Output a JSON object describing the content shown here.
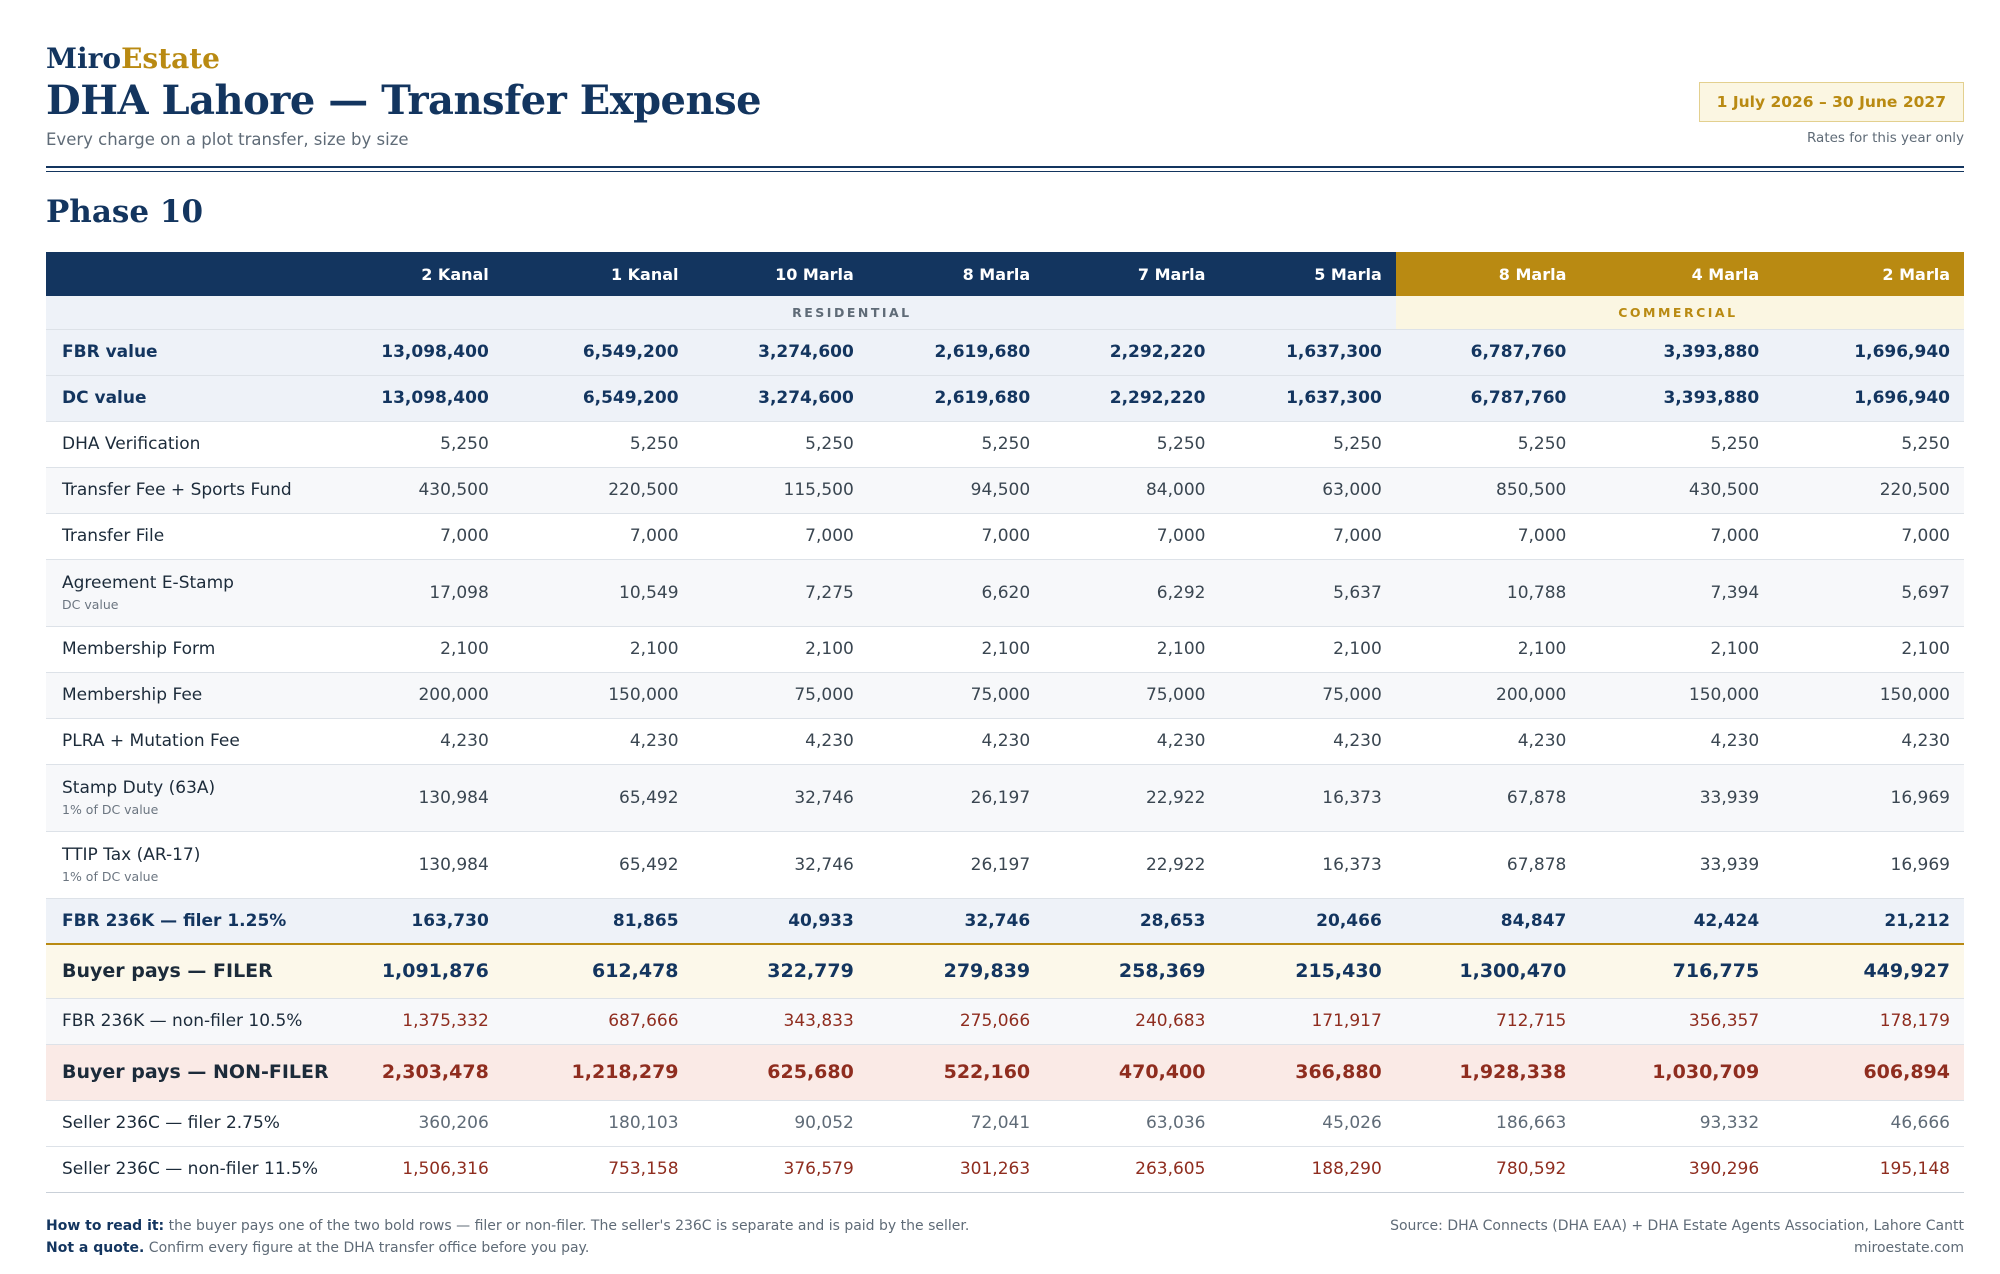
{
  "brand": {
    "part1": "Miro",
    "part2": "Estate"
  },
  "title": "DHA Lahore — Transfer Expense",
  "subtitle": "Every charge on a plot transfer, size by size",
  "date_range": "1 July 2026 – 30 June 2027",
  "rates_note": "Rates for this year only",
  "phase": "Phase 10",
  "columns": [
    "2 Kanal",
    "1 Kanal",
    "10 Marla",
    "8 Marla",
    "7 Marla",
    "5 Marla",
    "8 Marla",
    "4 Marla",
    "2 Marla"
  ],
  "categories": {
    "residential": "RESIDENTIAL",
    "commercial": "COMMERCIAL"
  },
  "rows": [
    {
      "label": "FBR value",
      "values": [
        "13,098,400",
        "6,549,200",
        "3,274,600",
        "2,619,680",
        "2,292,220",
        "1,637,300",
        "6,787,760",
        "3,393,880",
        "1,696,940"
      ]
    },
    {
      "label": "DC value",
      "values": [
        "13,098,400",
        "6,549,200",
        "3,274,600",
        "2,619,680",
        "2,292,220",
        "1,637,300",
        "6,787,760",
        "3,393,880",
        "1,696,940"
      ]
    },
    {
      "label": "DHA Verification",
      "values": [
        "5,250",
        "5,250",
        "5,250",
        "5,250",
        "5,250",
        "5,250",
        "5,250",
        "5,250",
        "5,250"
      ]
    },
    {
      "label": "Transfer Fee + Sports Fund",
      "values": [
        "430,500",
        "220,500",
        "115,500",
        "94,500",
        "84,000",
        "63,000",
        "850,500",
        "430,500",
        "220,500"
      ]
    },
    {
      "label": "Transfer File",
      "values": [
        "7,000",
        "7,000",
        "7,000",
        "7,000",
        "7,000",
        "7,000",
        "7,000",
        "7,000",
        "7,000"
      ]
    },
    {
      "label": "Agreement E-Stamp",
      "sub": "DC value",
      "values": [
        "17,098",
        "10,549",
        "7,275",
        "6,620",
        "6,292",
        "5,637",
        "10,788",
        "7,394",
        "5,697"
      ]
    },
    {
      "label": "Membership Form",
      "values": [
        "2,100",
        "2,100",
        "2,100",
        "2,100",
        "2,100",
        "2,100",
        "2,100",
        "2,100",
        "2,100"
      ]
    },
    {
      "label": "Membership Fee",
      "values": [
        "200,000",
        "150,000",
        "75,000",
        "75,000",
        "75,000",
        "75,000",
        "200,000",
        "150,000",
        "150,000"
      ]
    },
    {
      "label": "PLRA + Mutation Fee",
      "values": [
        "4,230",
        "4,230",
        "4,230",
        "4,230",
        "4,230",
        "4,230",
        "4,230",
        "4,230",
        "4,230"
      ]
    },
    {
      "label": "Stamp Duty (63A)",
      "sub": "1% of DC value",
      "values": [
        "130,984",
        "65,492",
        "32,746",
        "26,197",
        "22,922",
        "16,373",
        "67,878",
        "33,939",
        "16,969"
      ]
    },
    {
      "label": "TTIP Tax (AR-17)",
      "sub": "1% of DC value",
      "values": [
        "130,984",
        "65,492",
        "32,746",
        "26,197",
        "22,922",
        "16,373",
        "67,878",
        "33,939",
        "16,969"
      ]
    },
    {
      "label": "FBR 236K — filer 1.25%",
      "values": [
        "163,730",
        "81,865",
        "40,933",
        "32,746",
        "28,653",
        "20,466",
        "84,847",
        "42,424",
        "21,212"
      ]
    },
    {
      "label": "Buyer pays — FILER",
      "values": [
        "1,091,876",
        "612,478",
        "322,779",
        "279,839",
        "258,369",
        "215,430",
        "1,300,470",
        "716,775",
        "449,927"
      ]
    },
    {
      "label": "FBR 236K — non-filer 10.5%",
      "values": [
        "1,375,332",
        "687,666",
        "343,833",
        "275,066",
        "240,683",
        "171,917",
        "712,715",
        "356,357",
        "178,179"
      ]
    },
    {
      "label": "Buyer pays — NON-FILER",
      "values": [
        "2,303,478",
        "1,218,279",
        "625,680",
        "522,160",
        "470,400",
        "366,880",
        "1,928,338",
        "1,030,709",
        "606,894"
      ]
    },
    {
      "label": "Seller 236C — filer 2.75%",
      "values": [
        "360,206",
        "180,103",
        "90,052",
        "72,041",
        "63,036",
        "45,026",
        "186,663",
        "93,332",
        "46,666"
      ]
    },
    {
      "label": "Seller 236C — non-filer 11.5%",
      "values": [
        "1,506,316",
        "753,158",
        "376,579",
        "301,263",
        "263,605",
        "188,290",
        "780,592",
        "390,296",
        "195,148"
      ]
    }
  ],
  "footer": {
    "how_label": "How to read it:",
    "how_text": " the buyer pays one of the two bold rows — filer or non-filer. The seller's 236C is separate and is paid by the seller.",
    "quote_label": "Not a quote.",
    "quote_text": " Confirm every figure at the DHA transfer office before you pay.",
    "source": "Source: DHA Connects (DHA EAA) + DHA Estate Agents Association, Lahore Cantt",
    "website": "miroestate.com"
  },
  "colors": {
    "navy": "#13355f",
    "gold": "#b98a12",
    "red": "#8f2d1f"
  }
}
